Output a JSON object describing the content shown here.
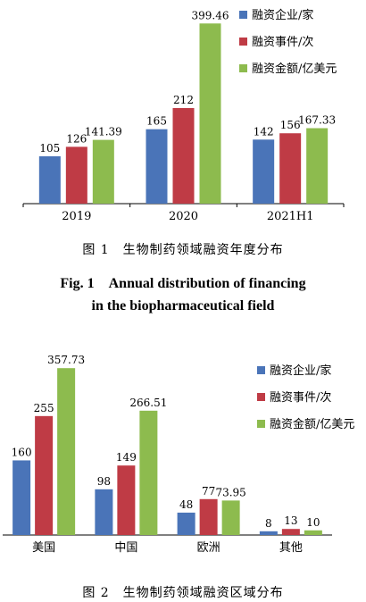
{
  "colors": {
    "companies": "#4a74b8",
    "events": "#bf3b45",
    "amount": "#8dbb4e",
    "axis": "#000000"
  },
  "figure1": {
    "caption_cn": "图 1　生物制药领域融资年度分布",
    "caption_en_line1": "Fig. 1　Annual distribution of financing",
    "caption_en_line2": "in the biopharmaceutical field"
  },
  "figure2": {
    "caption_cn": "图 2　生物制药领域融资区域分布"
  },
  "chart_data": [
    {
      "type": "bar",
      "categories": [
        "2019",
        "2020",
        "2021H1"
      ],
      "series": [
        {
          "name": "融资企业/家",
          "values": [
            105,
            165,
            142
          ]
        },
        {
          "name": "融资事件/次",
          "values": [
            126,
            212,
            156
          ]
        },
        {
          "name": "融资金额/亿美元",
          "values": [
            141.39,
            399.46,
            167.33
          ]
        }
      ],
      "data_labels": [
        [
          "105",
          "165",
          "142"
        ],
        [
          "126",
          "212",
          "156"
        ],
        [
          "141.39",
          "399.46",
          "167.33"
        ]
      ],
      "legend": "top-right",
      "ylim": [
        0,
        400
      ]
    },
    {
      "type": "bar",
      "categories": [
        "美国",
        "中国",
        "欧洲",
        "其他"
      ],
      "series": [
        {
          "name": "融资企业/家",
          "values": [
            160,
            98,
            48,
            8
          ]
        },
        {
          "name": "融资事件/次",
          "values": [
            255,
            149,
            77,
            13
          ]
        },
        {
          "name": "融资金额/亿美元",
          "values": [
            357.73,
            266.51,
            73.95,
            10
          ]
        }
      ],
      "data_labels": [
        [
          "160",
          "98",
          "48",
          "8"
        ],
        [
          "255",
          "149",
          "77",
          "13"
        ],
        [
          "357.73",
          "266.51",
          "73.95",
          "10"
        ]
      ],
      "legend": "top-right",
      "ylim": [
        0,
        360
      ]
    }
  ]
}
